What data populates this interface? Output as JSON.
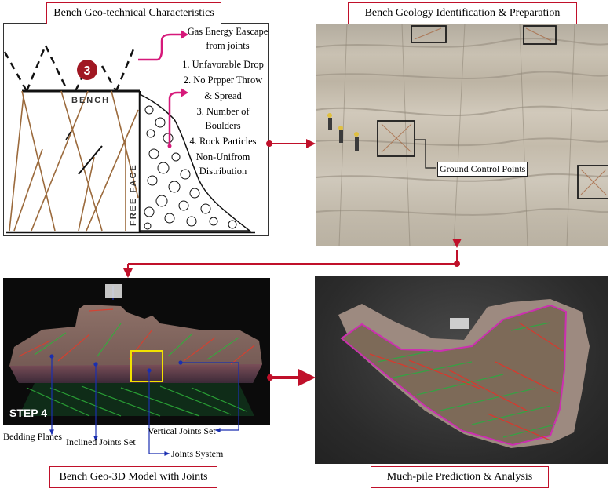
{
  "panels": {
    "top_left_title": "Bench Geo-technical Characteristics",
    "top_right_title": "Bench Geology Identification & Preparation",
    "bottom_left_title": "Bench Geo-3D Model with Joints",
    "bottom_right_title": "Much-pile Prediction & Analysis"
  },
  "bench_diagram": {
    "circle_number": "3",
    "bench_label": "BENCH",
    "free_face_label": "FREE FACE",
    "gas_line1": "Gas Energy Eascape",
    "gas_line2": "from joints",
    "items": [
      "1. Unfavorable Drop",
      "2. No Prpper Throw",
      "& Spread",
      "3. Number of",
      "Boulders",
      "4. Rock Particles",
      "Non-Unifrom",
      "Distribution"
    ]
  },
  "geology_photo": {
    "ground_control_label": "Ground Control Points"
  },
  "model_3d": {
    "step_label": "STEP 4",
    "labels": {
      "bedding": "Bedding Planes",
      "inclined": "Inclined Joints Set",
      "vertical": "Vertical Joints Set",
      "joints_system": "Joints System"
    }
  },
  "colors": {
    "accent_red": "#c0102a",
    "magenta": "#d6197a",
    "annotation_blue": "#1a2fb0",
    "joint_brown": "#9b6a3c",
    "highlight_yellow": "#f2e200"
  }
}
